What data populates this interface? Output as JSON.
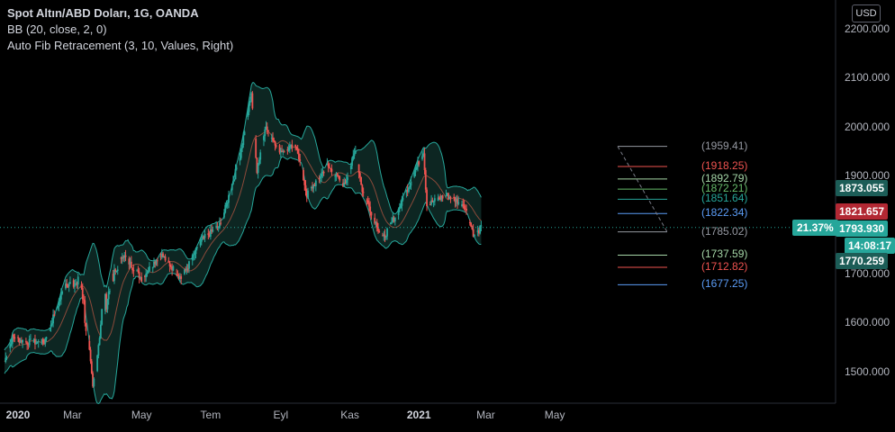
{
  "legend": {
    "title": "Spot Altın/ABD Doları, 1G, OANDA",
    "bb": "BB (20, close, 2, 0)",
    "fib": "Auto Fib Retracement (3, 10, Values, Right)"
  },
  "currency_button": "USD",
  "price_tags": {
    "bb_upper": "1873.055",
    "bb_mid": "1821.657",
    "last_price": "1793.930",
    "last_change": "21.37%",
    "countdown": "14:08:17",
    "bb_lower": "1770.259"
  },
  "colors": {
    "up": "#26a69a",
    "down": "#ef5350",
    "band_fill": "#0d2622",
    "band_line": "#26a69a",
    "basis": "#8b4a3a",
    "basis_tag": "#b22833"
  },
  "fib_labels": [
    {
      "text": "(1959.41)",
      "color": "#9598a1"
    },
    {
      "text": "(1918.25)",
      "color": "#ef5350"
    },
    {
      "text": "(1892.79)",
      "color": "#a5d6a7"
    },
    {
      "text": "(1872.21)",
      "color": "#66bb6a"
    },
    {
      "text": "(1851.64)",
      "color": "#26a69a"
    },
    {
      "text": "(1822.34)",
      "color": "#5b9cf6"
    },
    {
      "text": "(1785.02)",
      "color": "#9598a1"
    },
    {
      "text": "(1737.59)",
      "color": "#a5d6a7"
    },
    {
      "text": "(1712.82)",
      "color": "#ef5350"
    },
    {
      "text": "(1677.25)",
      "color": "#5b9cf6"
    }
  ],
  "chart_data": {
    "type": "candlestick",
    "title": "Spot Altın/ABD Doları, 1G, OANDA",
    "x_ticks": [
      "2020",
      "Mar",
      "May",
      "Tem",
      "Eyl",
      "Kas",
      "2021",
      "Mar",
      "May"
    ],
    "y_ticks": [
      "2200.000",
      "2100.000",
      "2000.000",
      "1900.000",
      "1700.000",
      "1600.000",
      "1500.000"
    ],
    "ylim": [
      1430,
      2230
    ],
    "price_path": [
      {
        "t": "2020-01-01",
        "v": 1520
      },
      {
        "t": "2020-01-08",
        "v": 1570
      },
      {
        "t": "2020-01-20",
        "v": 1560
      },
      {
        "t": "2020-02-05",
        "v": 1560
      },
      {
        "t": "2020-02-24",
        "v": 1680
      },
      {
        "t": "2020-03-09",
        "v": 1680
      },
      {
        "t": "2020-03-19",
        "v": 1460
      },
      {
        "t": "2020-03-27",
        "v": 1620
      },
      {
        "t": "2020-04-14",
        "v": 1740
      },
      {
        "t": "2020-05-01",
        "v": 1690
      },
      {
        "t": "2020-05-18",
        "v": 1740
      },
      {
        "t": "2020-06-05",
        "v": 1690
      },
      {
        "t": "2020-06-24",
        "v": 1770
      },
      {
        "t": "2020-07-10",
        "v": 1800
      },
      {
        "t": "2020-07-27",
        "v": 1940
      },
      {
        "t": "2020-08-06",
        "v": 2070
      },
      {
        "t": "2020-08-11",
        "v": 1910
      },
      {
        "t": "2020-08-18",
        "v": 2000
      },
      {
        "t": "2020-09-01",
        "v": 1950
      },
      {
        "t": "2020-09-15",
        "v": 1960
      },
      {
        "t": "2020-09-24",
        "v": 1860
      },
      {
        "t": "2020-10-12",
        "v": 1920
      },
      {
        "t": "2020-10-27",
        "v": 1880
      },
      {
        "t": "2020-11-06",
        "v": 1950
      },
      {
        "t": "2020-11-12",
        "v": 1870
      },
      {
        "t": "2020-11-30",
        "v": 1770
      },
      {
        "t": "2020-12-14",
        "v": 1830
      },
      {
        "t": "2021-01-05",
        "v": 1950
      },
      {
        "t": "2021-01-08",
        "v": 1840
      },
      {
        "t": "2021-01-25",
        "v": 1860
      },
      {
        "t": "2021-02-10",
        "v": 1840
      },
      {
        "t": "2021-02-19",
        "v": 1775
      },
      {
        "t": "2021-02-25",
        "v": 1794
      }
    ],
    "bollinger": {
      "period": 20,
      "stddev": 2,
      "last_upper": 1873.055,
      "last_basis": 1821.657,
      "last_lower": 1770.259
    },
    "fib_levels": [
      1959.41,
      1918.25,
      1892.79,
      1872.21,
      1851.64,
      1822.34,
      1785.02,
      1737.59,
      1712.82,
      1677.25
    ],
    "last_price": 1793.93
  }
}
